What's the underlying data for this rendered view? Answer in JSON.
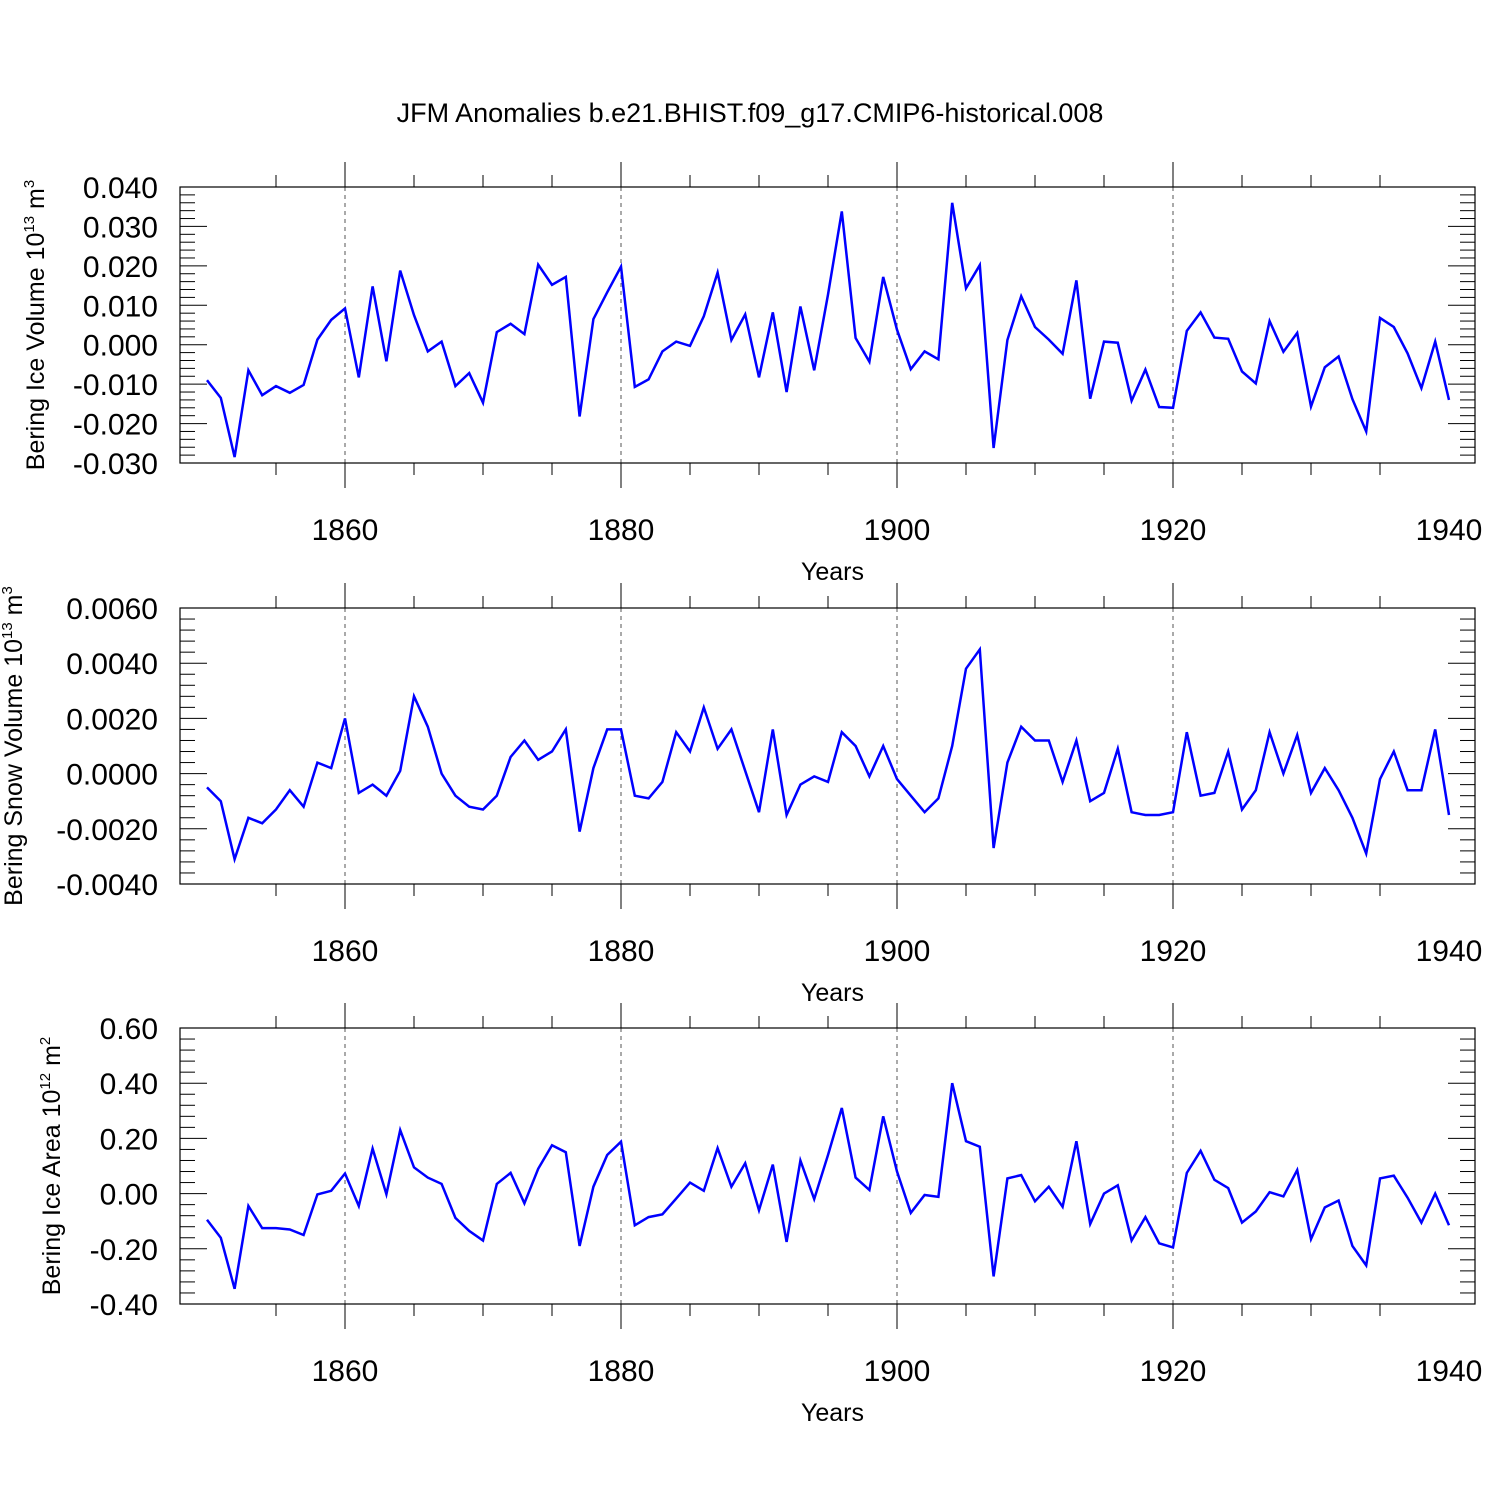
{
  "title": "JFM Anomalies b.e21.BHIST.f09_g17.CMIP6-historical.008",
  "line_color": "#0000ff",
  "chart_data": [
    {
      "type": "line",
      "ylabel_main": "Bering Ice Volume 10",
      "ylabel_sup": "13",
      "ylabel_unit": " m",
      "ylabel_unit_sup": "3",
      "xlabel": "Years",
      "xlim": [
        1850,
        1940
      ],
      "ylim": [
        -0.03,
        0.04
      ],
      "yticks": [
        -0.03,
        -0.02,
        -0.01,
        0.0,
        0.01,
        0.02,
        0.03,
        0.04
      ],
      "ytick_labels": [
        "-0.030",
        "-0.020",
        "-0.010",
        "0.000",
        "0.010",
        "0.020",
        "0.030",
        "0.040"
      ],
      "xticks": [
        1860,
        1880,
        1900,
        1920,
        1940
      ],
      "xtick_labels": [
        "1860",
        "1880",
        "1900",
        "1920",
        "1940"
      ],
      "x_start": 1850,
      "values": [
        -0.009,
        -0.0135,
        -0.0285,
        -0.0065,
        -0.0128,
        -0.0105,
        -0.0122,
        -0.0102,
        0.0013,
        0.0063,
        0.0092,
        -0.0083,
        0.0148,
        -0.0042,
        0.0188,
        0.0075,
        -0.0017,
        0.0008,
        -0.0105,
        -0.0072,
        -0.0147,
        0.0032,
        0.0053,
        0.0027,
        0.0203,
        0.0152,
        0.0172,
        -0.0182,
        0.0065,
        0.0133,
        0.0198,
        -0.0107,
        -0.0088,
        -0.0017,
        0.0008,
        -0.0003,
        0.0072,
        0.0183,
        0.0012,
        0.0077,
        -0.0083,
        0.0082,
        -0.012,
        0.0097,
        -0.0065,
        0.0127,
        0.0338,
        0.0017,
        -0.0043,
        0.0172,
        0.0038,
        -0.0062,
        -0.0017,
        -0.0037,
        0.036,
        0.0143,
        0.0202,
        -0.0262,
        0.0012,
        0.0123,
        0.0045,
        0.0013,
        -0.0023,
        0.0163,
        -0.0137,
        0.0008,
        0.0005,
        -0.0142,
        -0.0063,
        -0.0158,
        -0.016,
        0.0035,
        0.0082,
        0.0018,
        0.0015,
        -0.0068,
        -0.0098,
        0.006,
        -0.0018,
        0.003,
        -0.0157,
        -0.0057,
        -0.003,
        -0.0138,
        -0.022,
        0.0068,
        0.0045,
        -0.0022,
        -0.011,
        0.0008,
        -0.014
      ]
    },
    {
      "type": "line",
      "ylabel_main": "Bering Snow Volume 10",
      "ylabel_sup": "13",
      "ylabel_unit": " m",
      "ylabel_unit_sup": "3",
      "xlabel": "Years",
      "xlim": [
        1850,
        1940
      ],
      "ylim": [
        -0.004,
        0.006
      ],
      "yticks": [
        -0.004,
        -0.002,
        0.0,
        0.002,
        0.004,
        0.006
      ],
      "ytick_labels": [
        "-0.0040",
        "-0.0020",
        "0.0000",
        "0.0020",
        "0.0040",
        "0.0060"
      ],
      "xticks": [
        1860,
        1880,
        1900,
        1920,
        1940
      ],
      "xtick_labels": [
        "1860",
        "1880",
        "1900",
        "1920",
        "1940"
      ],
      "x_start": 1850,
      "values": [
        -0.0005,
        -0.001,
        -0.0031,
        -0.0016,
        -0.0018,
        -0.0013,
        -0.0006,
        -0.0012,
        0.0004,
        0.0002,
        0.002,
        -0.0007,
        -0.0004,
        -0.0008,
        0.0001,
        0.0028,
        0.0017,
        0.0,
        -0.0008,
        -0.0012,
        -0.0013,
        -0.0008,
        0.0006,
        0.0012,
        0.0005,
        0.0008,
        0.0016,
        -0.0021,
        0.0002,
        0.0016,
        0.0016,
        -0.0008,
        -0.0009,
        -0.0003,
        0.0015,
        0.0008,
        0.0024,
        0.0009,
        0.0016,
        0.0001,
        -0.0014,
        0.0016,
        -0.0015,
        -0.0004,
        -0.0001,
        -0.0003,
        0.0015,
        0.001,
        -0.0001,
        0.001,
        -0.0002,
        -0.0008,
        -0.0014,
        -0.0009,
        0.001,
        0.0038,
        0.0045,
        -0.0027,
        0.0004,
        0.0017,
        0.0012,
        0.0012,
        -0.0003,
        0.0012,
        -0.001,
        -0.0007,
        0.0009,
        -0.0014,
        -0.0015,
        -0.0015,
        -0.0014,
        0.0015,
        -0.0008,
        -0.0007,
        0.0008,
        -0.0013,
        -0.0006,
        0.0015,
        0.0,
        0.0014,
        -0.0007,
        0.0002,
        -0.0006,
        -0.0016,
        -0.0029,
        -0.0002,
        0.0008,
        -0.0006,
        -0.0006,
        0.0016,
        -0.0015
      ]
    },
    {
      "type": "line",
      "ylabel_main": "Bering Ice Area 10",
      "ylabel_sup": "12",
      "ylabel_unit": " m",
      "ylabel_unit_sup": "2",
      "xlabel": "Years",
      "xlim": [
        1850,
        1940
      ],
      "ylim": [
        -0.4,
        0.6
      ],
      "yticks": [
        -0.4,
        -0.2,
        0.0,
        0.2,
        0.4,
        0.6
      ],
      "ytick_labels": [
        "-0.40",
        "-0.20",
        "0.00",
        "0.20",
        "0.40",
        "0.60"
      ],
      "xticks": [
        1860,
        1880,
        1900,
        1920,
        1940
      ],
      "xtick_labels": [
        "1860",
        "1880",
        "1900",
        "1920",
        "1940"
      ],
      "x_start": 1850,
      "values": [
        -0.095,
        -0.16,
        -0.345,
        -0.045,
        -0.125,
        -0.125,
        -0.13,
        -0.15,
        -0.003,
        0.01,
        0.073,
        -0.045,
        0.163,
        -0.002,
        0.23,
        0.095,
        0.058,
        0.035,
        -0.088,
        -0.135,
        -0.17,
        0.035,
        0.075,
        -0.035,
        0.09,
        0.175,
        0.15,
        -0.19,
        0.025,
        0.14,
        0.188,
        -0.115,
        -0.085,
        -0.075,
        -0.018,
        0.04,
        0.01,
        0.165,
        0.025,
        0.11,
        -0.06,
        0.105,
        -0.175,
        0.12,
        -0.02,
        0.14,
        0.31,
        0.058,
        0.013,
        0.28,
        0.08,
        -0.07,
        -0.005,
        -0.012,
        0.4,
        0.19,
        0.17,
        -0.3,
        0.055,
        0.067,
        -0.028,
        0.025,
        -0.048,
        0.19,
        -0.11,
        0.0,
        0.03,
        -0.17,
        -0.085,
        -0.18,
        -0.195,
        0.075,
        0.155,
        0.05,
        0.02,
        -0.105,
        -0.065,
        0.005,
        -0.01,
        0.085,
        -0.165,
        -0.05,
        -0.025,
        -0.19,
        -0.26,
        0.055,
        0.065,
        -0.015,
        -0.105,
        0.0,
        -0.115
      ]
    }
  ]
}
